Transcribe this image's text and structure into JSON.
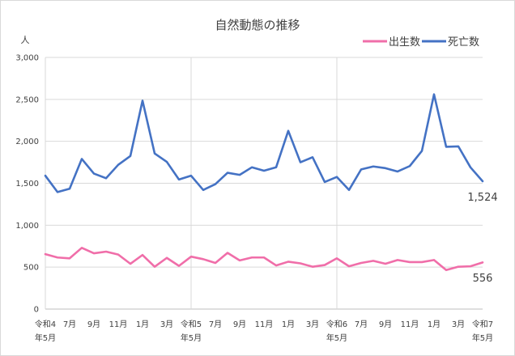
{
  "chart_data": {
    "type": "line",
    "title": "自然動態の推移",
    "ylabel": "人",
    "ylim": [
      0,
      3000
    ],
    "yticks": [
      "0",
      "500",
      "1,000",
      "1,500",
      "2,000",
      "2,500",
      "3,000"
    ],
    "ytick_values": [
      0,
      500,
      1000,
      1500,
      2000,
      2500,
      3000
    ],
    "x_tick_labels": [
      {
        "index": 0,
        "lines": [
          "令和4",
          "年5月"
        ]
      },
      {
        "index": 2,
        "lines": [
          "7月"
        ]
      },
      {
        "index": 4,
        "lines": [
          "9月"
        ]
      },
      {
        "index": 6,
        "lines": [
          "11月"
        ]
      },
      {
        "index": 8,
        "lines": [
          "1月"
        ]
      },
      {
        "index": 10,
        "lines": [
          "3月"
        ]
      },
      {
        "index": 12,
        "lines": [
          "令和5",
          "年5月"
        ]
      },
      {
        "index": 14,
        "lines": [
          "7月"
        ]
      },
      {
        "index": 16,
        "lines": [
          "9月"
        ]
      },
      {
        "index": 18,
        "lines": [
          "11月"
        ]
      },
      {
        "index": 20,
        "lines": [
          "1月"
        ]
      },
      {
        "index": 22,
        "lines": [
          "3月"
        ]
      },
      {
        "index": 24,
        "lines": [
          "令和6",
          "年5月"
        ]
      },
      {
        "index": 26,
        "lines": [
          "7月"
        ]
      },
      {
        "index": 28,
        "lines": [
          "9月"
        ]
      },
      {
        "index": 30,
        "lines": [
          "11月"
        ]
      },
      {
        "index": 32,
        "lines": [
          "1月"
        ]
      },
      {
        "index": 34,
        "lines": [
          "3月"
        ]
      },
      {
        "index": 36,
        "lines": [
          "令和7",
          "年5月"
        ]
      }
    ],
    "year_boundaries": [
      12,
      24
    ],
    "point_count": 37,
    "legend_position": "top-right",
    "series": [
      {
        "name": "出生数",
        "color": "#f06ea9",
        "values": [
          655,
          615,
          605,
          730,
          665,
          685,
          650,
          540,
          645,
          505,
          610,
          515,
          625,
          595,
          550,
          670,
          580,
          615,
          615,
          520,
          565,
          545,
          505,
          525,
          605,
          510,
          550,
          575,
          540,
          585,
          560,
          560,
          585,
          465,
          505,
          510,
          556
        ],
        "end_label": "556"
      },
      {
        "name": "死亡数",
        "color": "#4472c4",
        "values": [
          1590,
          1395,
          1435,
          1790,
          1615,
          1560,
          1720,
          1825,
          2485,
          1855,
          1755,
          1545,
          1590,
          1420,
          1490,
          1625,
          1600,
          1690,
          1650,
          1690,
          2125,
          1750,
          1810,
          1515,
          1575,
          1420,
          1665,
          1700,
          1680,
          1640,
          1705,
          1885,
          2560,
          1935,
          1940,
          1690,
          1524
        ],
        "end_label": "1,524"
      }
    ]
  }
}
